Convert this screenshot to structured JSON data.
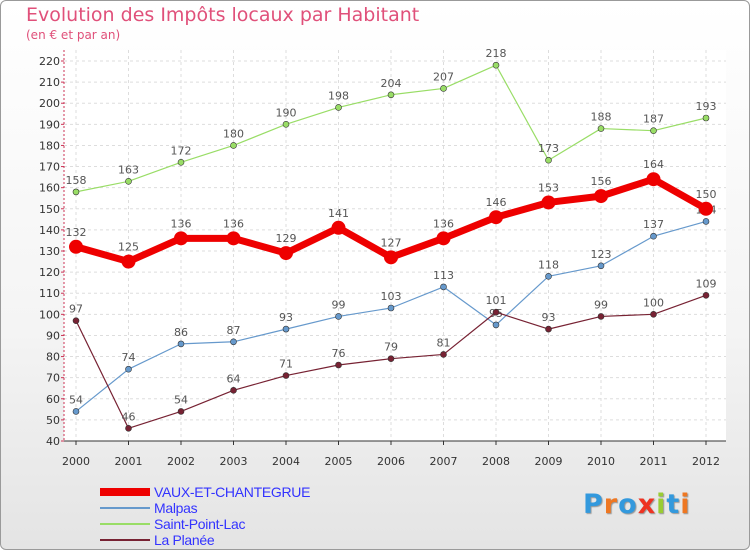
{
  "chart_data": {
    "type": "line",
    "title": "Evolution des Impôts locaux par Habitant",
    "subtitle": "(en € et par an)",
    "x": [
      "2000",
      "2001",
      "2002",
      "2003",
      "2004",
      "2005",
      "2006",
      "2007",
      "2008",
      "2009",
      "2010",
      "2011",
      "2012"
    ],
    "ylim": [
      40,
      220
    ],
    "yticks": [
      40,
      50,
      60,
      70,
      80,
      90,
      100,
      110,
      120,
      130,
      140,
      150,
      160,
      170,
      180,
      190,
      200,
      210,
      220
    ],
    "grid": true,
    "legend_position": "bottom-left",
    "series": [
      {
        "name": "VAUX-ET-CHANTEGRUE",
        "color": "#ee0000",
        "values": [
          132,
          125,
          136,
          136,
          129,
          141,
          127,
          136,
          146,
          153,
          156,
          164,
          150
        ],
        "labels": [
          "132",
          "125",
          "136",
          "136",
          "129",
          "141",
          "127",
          "136",
          "146",
          "153",
          "156",
          "164",
          "150"
        ]
      },
      {
        "name": "Malpas",
        "color": "#6699cc",
        "values": [
          54,
          74,
          86,
          87,
          93,
          99,
          103,
          113,
          95,
          118,
          123,
          137,
          144
        ],
        "labels": [
          "54",
          "74",
          "86",
          "87",
          "93",
          "99",
          "103",
          "113",
          "95",
          "118",
          "123",
          "137",
          "144"
        ]
      },
      {
        "name": "Saint-Point-Lac",
        "color": "#99dd66",
        "values": [
          158,
          163,
          172,
          180,
          190,
          198,
          204,
          207,
          218,
          173,
          188,
          187,
          193
        ],
        "labels": [
          "158",
          "163",
          "172",
          "180",
          "190",
          "198",
          "204",
          "207",
          "218",
          "173",
          "188",
          "187",
          "193"
        ]
      },
      {
        "name": "La Planée",
        "color": "#772233",
        "values": [
          97,
          46,
          54,
          64,
          71,
          76,
          79,
          81,
          101,
          93,
          99,
          100,
          109
        ],
        "labels": [
          "97",
          "46",
          "54",
          "64",
          "71",
          "76",
          "79",
          "81",
          "101",
          "93",
          "99",
          "100",
          "109"
        ]
      }
    ]
  },
  "brand": {
    "letters": [
      "P",
      "r",
      "o",
      "x",
      "i",
      "t",
      "i"
    ],
    "colors": [
      "#3399dd",
      "#ee7722",
      "#3399dd",
      "#ee3322",
      "#99cc33",
      "#3399dd",
      "#ee7722"
    ]
  }
}
